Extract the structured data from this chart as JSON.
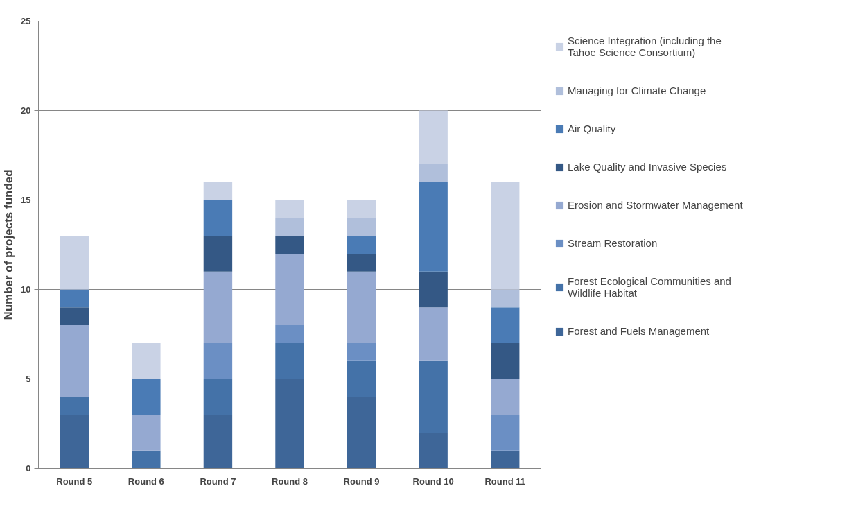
{
  "chart_data": {
    "type": "bar",
    "stacked": true,
    "ylabel": "Number of projects funded",
    "categories": [
      "Round 5",
      "Round 6",
      "Round 7",
      "Round 8",
      "Round 9",
      "Round 10",
      "Round 11"
    ],
    "series": [
      {
        "name": "Forest and Fuels Management",
        "color": "#3e6698",
        "values": [
          3,
          0,
          3,
          5,
          4,
          2,
          1
        ]
      },
      {
        "name": "Forest Ecological Communities and Wildlife Habitat",
        "color": "#4472a8",
        "values": [
          1,
          1,
          2,
          2,
          2,
          4,
          0
        ]
      },
      {
        "name": "Stream Restoration",
        "color": "#6b8fc4",
        "values": [
          0,
          0,
          2,
          1,
          1,
          0,
          2
        ]
      },
      {
        "name": "Erosion and Stormwater Management",
        "color": "#95a9d1",
        "values": [
          4,
          2,
          4,
          4,
          4,
          3,
          2
        ]
      },
      {
        "name": "Lake Quality and Invasive Species",
        "color": "#345885",
        "values": [
          1,
          0,
          2,
          1,
          1,
          2,
          2
        ]
      },
      {
        "name": "Air Quality",
        "color": "#4a7bb5",
        "values": [
          1,
          2,
          2,
          0,
          1,
          5,
          2
        ]
      },
      {
        "name": "Managing for Climate Change",
        "color": "#b0bfdb",
        "values": [
          0,
          0,
          0,
          1,
          1,
          1,
          1
        ]
      },
      {
        "name": "Science Integration (including the Tahoe Science Consortium)",
        "color": "#c9d2e5",
        "values": [
          3,
          2,
          1,
          1,
          1,
          3,
          6
        ]
      }
    ],
    "ylim": [
      0,
      25
    ],
    "yticks": [
      0,
      5,
      10,
      15,
      20,
      25
    ],
    "grid": "y",
    "legend": "right"
  }
}
